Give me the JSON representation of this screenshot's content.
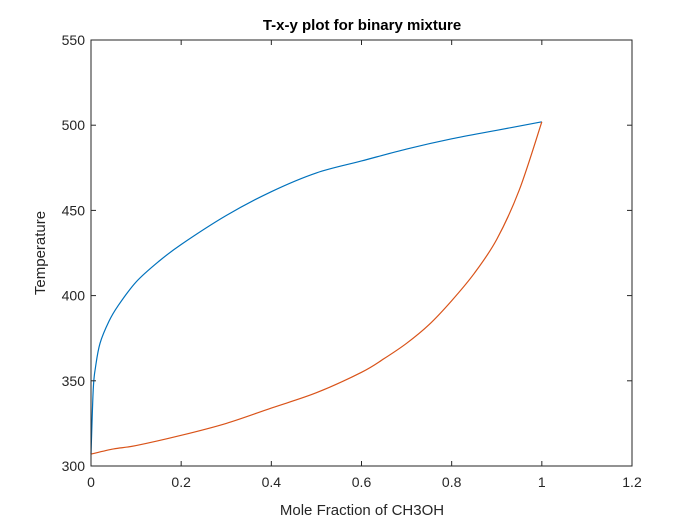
{
  "chart_data": {
    "type": "line",
    "title": "T-x-y plot for binary mixture",
    "xlabel": "Mole Fraction of CH3OH",
    "ylabel": "Temperature",
    "xlim": [
      0,
      1.2
    ],
    "ylim": [
      300,
      550
    ],
    "xticks": [
      0,
      0.2,
      0.4,
      0.6,
      0.8,
      1,
      1.2
    ],
    "xtick_labels": [
      "0",
      "0.2",
      "0.4",
      "0.6",
      "0.8",
      "1",
      "1.2"
    ],
    "yticks": [
      300,
      350,
      400,
      450,
      500,
      550
    ],
    "ytick_labels": [
      "300",
      "350",
      "400",
      "450",
      "500",
      "550"
    ],
    "grid": false,
    "legend": "none",
    "series": [
      {
        "color": "#0072BD",
        "x": [
          0,
          0.005,
          0.01,
          0.02,
          0.04,
          0.06,
          0.1,
          0.15,
          0.2,
          0.3,
          0.4,
          0.5,
          0.6,
          0.7,
          0.8,
          0.9,
          1.0
        ],
        "y": [
          307,
          345,
          358,
          372,
          385,
          394,
          408,
          420,
          430,
          447,
          461,
          472,
          479,
          486,
          492,
          497,
          502
        ]
      },
      {
        "color": "#D95319",
        "x": [
          0,
          0.05,
          0.1,
          0.2,
          0.3,
          0.4,
          0.5,
          0.6,
          0.65,
          0.7,
          0.75,
          0.8,
          0.85,
          0.9,
          0.95,
          1.0
        ],
        "y": [
          307,
          310,
          312,
          318,
          325,
          334,
          343,
          355,
          363,
          372,
          383,
          397,
          413,
          433,
          462,
          502
        ]
      }
    ]
  },
  "colors": {
    "axis": "#262626",
    "background": "#ffffff"
  }
}
